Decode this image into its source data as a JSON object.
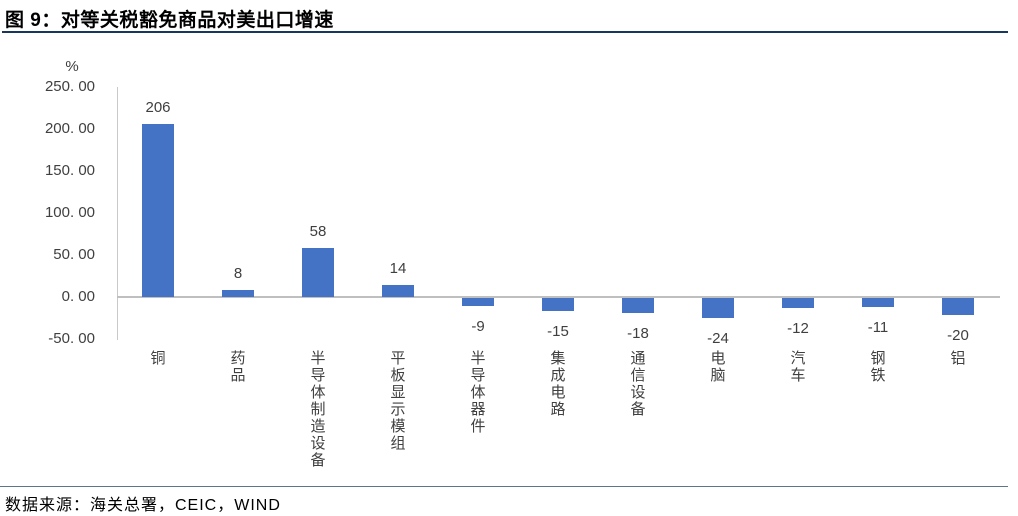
{
  "header": {
    "title": "图 9：对等关税豁免商品对美出口增速"
  },
  "footer": {
    "source": "数据来源：海关总署，CEIC，WIND"
  },
  "colors": {
    "bar": "#4472c4",
    "title_rule": "#17375e",
    "source_rule": "#5d7589",
    "axis_line": "#bfbfbf",
    "text": "#404040"
  },
  "chart_data": {
    "type": "bar",
    "title": "图 9：对等关税豁免商品对美出口增速",
    "unit_label": "%",
    "categories": [
      "铜",
      "药品",
      "半导体制造设备",
      "平板显示模组",
      "半导体器件",
      "集成电路",
      "通信设备",
      "电脑",
      "汽车",
      "钢铁",
      "铝"
    ],
    "values": [
      206,
      8,
      58,
      14,
      -9,
      -15,
      -18,
      -24,
      -12,
      -11,
      -20
    ],
    "data_labels": [
      "206",
      "8",
      "58",
      "14",
      "-9",
      "-15",
      "-18",
      "-24",
      "-12",
      "-11",
      "-20"
    ],
    "y_ticks": [
      250,
      200,
      150,
      100,
      50,
      0,
      -50
    ],
    "y_tick_labels": [
      "250. 00",
      "200. 00",
      "150. 00",
      "100. 00",
      "50. 00",
      "0. 00",
      "-50. 00"
    ],
    "ylim": [
      -50,
      250
    ],
    "xlabel": "",
    "ylabel": "%",
    "grid": false,
    "legend": "none",
    "bar_color": "#4472c4"
  }
}
